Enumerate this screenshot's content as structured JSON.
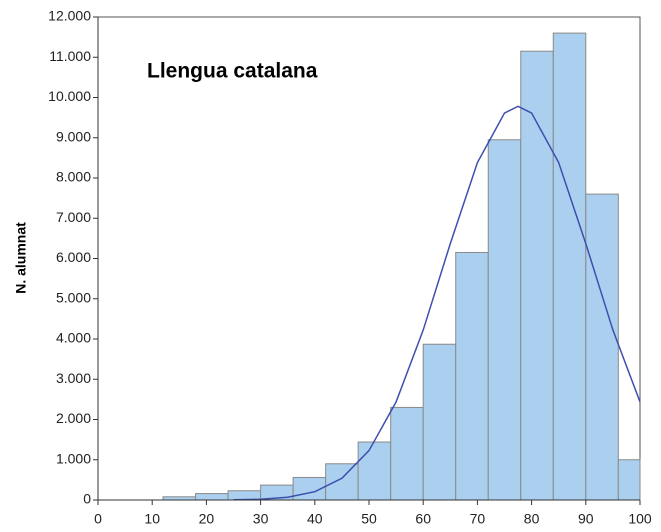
{
  "chart_data": {
    "type": "histogram",
    "title": "Llengua catalana",
    "y_label": "N. alumnat",
    "bins": [
      0,
      6,
      12,
      18,
      24,
      30,
      36,
      42,
      48,
      54,
      60,
      66,
      72,
      78,
      84,
      90,
      96,
      100
    ],
    "values": [
      0,
      0,
      80,
      160,
      230,
      370,
      560,
      900,
      1440,
      2300,
      3870,
      6150,
      8950,
      11150,
      11600,
      7600,
      1000
    ],
    "color": "#abcfee",
    "curve": {
      "color": "#3d4fae",
      "x": [
        25,
        30,
        35,
        40,
        45,
        50,
        55,
        60,
        65,
        70,
        75,
        77.5,
        80,
        85,
        90,
        95,
        100
      ],
      "values": [
        5,
        20,
        69,
        206,
        539,
        1228,
        2437,
        4222,
        6370,
        8382,
        9614,
        9780,
        9614,
        8382,
        6370,
        4222,
        2437
      ]
    },
    "xlim": [
      0,
      100
    ],
    "xticks": [
      0,
      10,
      20,
      30,
      40,
      50,
      60,
      70,
      80,
      90,
      100
    ],
    "ylim": [
      0,
      12000
    ],
    "yticks": [
      0,
      {
        "value": 1000,
        "label": "1.000"
      },
      {
        "value": 2000,
        "label": "2.000"
      },
      {
        "value": 3000,
        "label": "3.000"
      },
      {
        "value": 4000,
        "label": "4.000"
      },
      {
        "value": 5000,
        "label": "5.000"
      },
      {
        "value": 6000,
        "label": "6.000"
      },
      {
        "value": 7000,
        "label": "7.000"
      },
      {
        "value": 8000,
        "label": "8.000"
      },
      {
        "value": 9000,
        "label": "9.000"
      },
      {
        "value": 10000,
        "label": "10.000"
      },
      {
        "value": 11000,
        "label": "11.000"
      },
      {
        "value": 12000,
        "label": "12.000"
      }
    ]
  }
}
